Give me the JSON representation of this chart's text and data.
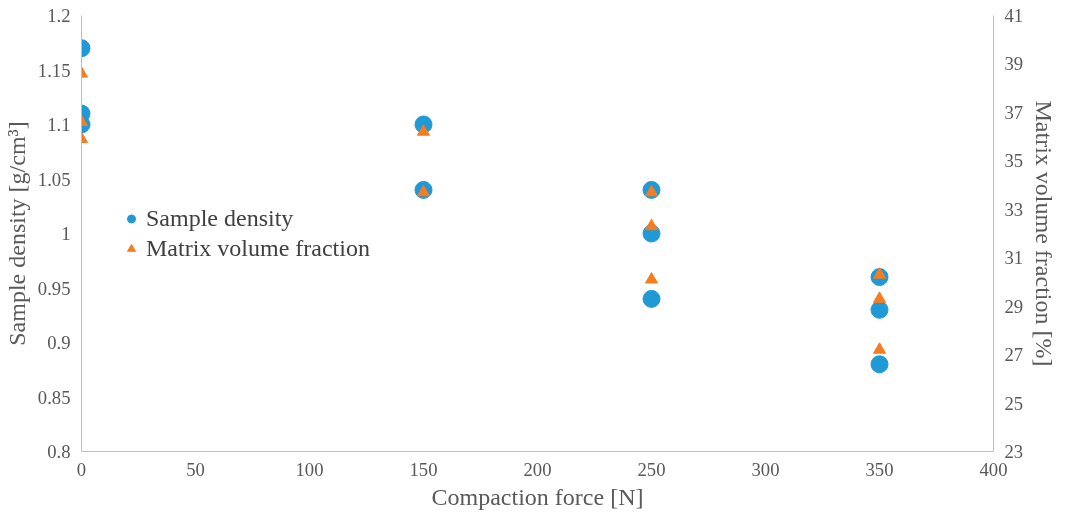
{
  "chart_data": {
    "type": "scatter",
    "xlabel": "Compaction force [N]",
    "ylabel": "Sample density [g/cm³]",
    "y2label": "Matrix volume fraction [%]",
    "xlim": [
      0,
      400
    ],
    "xticks": [
      0,
      50,
      100,
      150,
      200,
      250,
      300,
      350,
      400
    ],
    "ylim": [
      0.8,
      1.2
    ],
    "yticks": [
      {
        "value": 0.8,
        "label": "0.8"
      },
      0.85,
      {
        "value": 0.9,
        "label": "0.9"
      },
      0.95,
      {
        "value": 1.0,
        "label": "1"
      },
      1.05,
      {
        "value": 1.1,
        "label": "1.1"
      },
      1.15,
      {
        "value": 1.2,
        "label": "1.2"
      }
    ],
    "y2lim": [
      23,
      41
    ],
    "y2ticks": [
      23,
      25,
      27,
      29,
      31,
      33,
      35,
      37,
      39,
      41
    ],
    "grid": false,
    "legend": "left",
    "series": [
      {
        "name": "Sample density",
        "color": "#1f9ad6",
        "marker": "circle",
        "x": [
          0,
          0,
          0,
          150,
          150,
          250,
          250,
          250,
          350,
          350,
          350
        ],
        "values": [
          1.17,
          1.11,
          1.1,
          1.1,
          1.04,
          1.04,
          1.0,
          0.94,
          0.96,
          0.93,
          0.88
        ]
      },
      {
        "name": "Matrix volume fraction",
        "color": "#f57c20",
        "marker": "triangle",
        "axis": "y2",
        "x": [
          0,
          0,
          0,
          150,
          150,
          250,
          250,
          250,
          350,
          350,
          350
        ],
        "values": [
          38.6,
          36.6,
          35.9,
          36.2,
          33.7,
          33.7,
          32.3,
          30.1,
          30.3,
          29.3,
          27.2
        ]
      }
    ]
  }
}
